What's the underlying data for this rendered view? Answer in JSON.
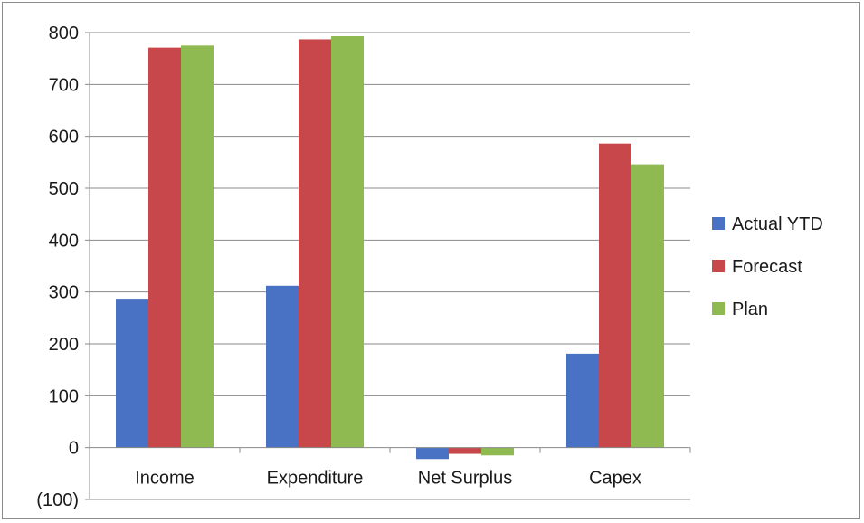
{
  "chart_data": {
    "type": "bar",
    "title": "",
    "xlabel": "",
    "ylabel": "",
    "categories": [
      "Income",
      "Expenditure",
      "Net Surplus",
      "Capex"
    ],
    "series": [
      {
        "name": "Actual YTD",
        "color": "#4a72c4",
        "values": [
          287,
          312,
          -22,
          181
        ]
      },
      {
        "name": "Forecast",
        "color": "#c8474a",
        "values": [
          771,
          787,
          -12,
          586
        ]
      },
      {
        "name": "Plan",
        "color": "#8fba52",
        "values": [
          775,
          793,
          -15,
          546
        ]
      }
    ],
    "ylim": [
      -100,
      800
    ],
    "yticks": [
      -100,
      0,
      100,
      200,
      300,
      400,
      500,
      600,
      700,
      800
    ],
    "ytick_labels": [
      "(100)",
      "0",
      "100",
      "200",
      "300",
      "400",
      "500",
      "600",
      "700",
      "800"
    ],
    "grid": true,
    "legend_position": "right"
  }
}
